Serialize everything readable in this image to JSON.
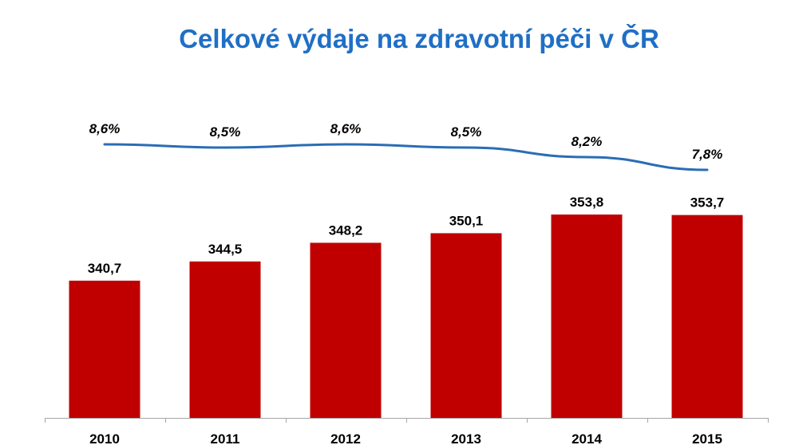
{
  "chart_data": {
    "type": "bar",
    "title": "Celkové výdaje na zdravotní péči v ČR",
    "categories": [
      "2010",
      "2011",
      "2012",
      "2013",
      "2014",
      "2015"
    ],
    "series": [
      {
        "type": "bar",
        "color": "#c00000",
        "values": [
          340.7,
          344.5,
          348.2,
          350.1,
          353.8,
          353.7
        ],
        "labels": [
          "340,7",
          "344,5",
          "348,2",
          "350,1",
          "353,8",
          "353,7"
        ]
      },
      {
        "type": "line",
        "color": "#2a6db5",
        "values": [
          8.6,
          8.5,
          8.6,
          8.5,
          8.2,
          7.8
        ],
        "labels": [
          "8,6%",
          "8,5%",
          "8,6%",
          "8,5%",
          "8,2%",
          "7,8%"
        ]
      }
    ],
    "grid": false,
    "legend": "none"
  }
}
